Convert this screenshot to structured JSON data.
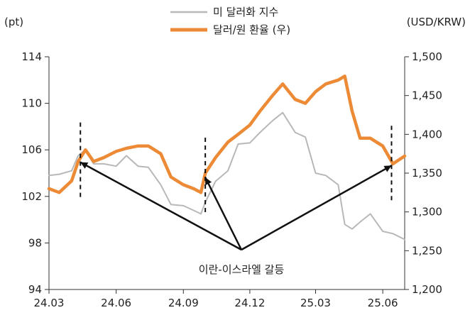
{
  "chart_data": {
    "type": "line",
    "y_left_unit": "(pt)",
    "y_right_unit": "(USD/KRW)",
    "x_ticks": [
      "24.03",
      "24.06",
      "24.09",
      "24.12",
      "25.03",
      "25.06"
    ],
    "y_left_ticks": [
      "114",
      "110",
      "106",
      "102",
      "98",
      "94"
    ],
    "y_right_ticks": [
      "1,500",
      "1,450",
      "1,400",
      "1,350",
      "1,300",
      "1,250",
      "1,200"
    ],
    "y_left_range": [
      94,
      114
    ],
    "y_right_range": [
      1200,
      1500
    ],
    "x_range": [
      "2024-03",
      "2025-07"
    ],
    "legend_position": "top-center",
    "annotation": "이란-이스라엘 갈등",
    "series": [
      {
        "name": "미 달러화 지수",
        "axis": "left",
        "color": "#b8b8b8",
        "x": [
          "2024-03",
          "2024-03-15",
          "2024-04",
          "2024-04-10",
          "2024-04-20",
          "2024-05",
          "2024-05-15",
          "2024-06",
          "2024-06-15",
          "2024-07",
          "2024-07-15",
          "2024-08",
          "2024-08-15",
          "2024-09",
          "2024-09-15",
          "2024-09-25",
          "2024-10",
          "2024-10-15",
          "2024-11",
          "2024-11-15",
          "2024-12",
          "2024-12-15",
          "2025-01",
          "2025-01-15",
          "2025-02",
          "2025-02-15",
          "2025-03",
          "2025-03-15",
          "2025-04",
          "2025-04-10",
          "2025-04-20",
          "2025-05",
          "2025-05-15",
          "2025-06",
          "2025-06-15",
          "2025-07"
        ],
        "values": [
          103.8,
          103.9,
          104.2,
          105.5,
          106.0,
          104.8,
          104.8,
          104.6,
          105.5,
          104.6,
          104.5,
          103.0,
          101.3,
          101.2,
          100.8,
          100.5,
          101.5,
          103.3,
          104.2,
          106.5,
          106.6,
          107.5,
          108.5,
          109.2,
          107.5,
          107.1,
          104.0,
          103.8,
          103.0,
          99.6,
          99.2,
          99.8,
          100.5,
          99.0,
          98.8,
          98.3
        ]
      },
      {
        "name": "달러/원 환율 (우)",
        "axis": "right",
        "color": "#ec8a36",
        "x": [
          "2024-03",
          "2024-03-15",
          "2024-04",
          "2024-04-10",
          "2024-04-20",
          "2024-05",
          "2024-05-15",
          "2024-06",
          "2024-06-15",
          "2024-07",
          "2024-07-15",
          "2024-08",
          "2024-08-15",
          "2024-09",
          "2024-09-15",
          "2024-09-25",
          "2024-10",
          "2024-10-15",
          "2024-11",
          "2024-11-15",
          "2024-12",
          "2024-12-15",
          "2025-01",
          "2025-01-15",
          "2025-02",
          "2025-02-15",
          "2025-03",
          "2025-03-15",
          "2025-04",
          "2025-04-10",
          "2025-04-20",
          "2025-05",
          "2025-05-15",
          "2025-06",
          "2025-06-15",
          "2025-07"
        ],
        "values": [
          1330,
          1325,
          1340,
          1365,
          1380,
          1365,
          1370,
          1378,
          1382,
          1385,
          1385,
          1375,
          1345,
          1335,
          1330,
          1325,
          1350,
          1370,
          1390,
          1400,
          1412,
          1430,
          1450,
          1465,
          1445,
          1440,
          1455,
          1465,
          1470,
          1475,
          1430,
          1395,
          1395,
          1385,
          1362,
          1372
        ]
      }
    ],
    "arrows_to": [
      "2024-04-13",
      "2024-10-01",
      "2025-06-13"
    ],
    "dashed_markers": [
      "2024-04-13",
      "2024-10-01",
      "2025-06-13"
    ]
  }
}
